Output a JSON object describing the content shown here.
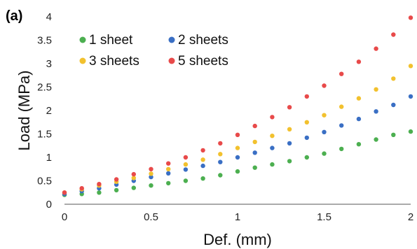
{
  "panel_label": "(a)",
  "chart_data": {
    "type": "scatter",
    "title": "",
    "xlabel": "Def.  (mm)",
    "ylabel": "Load  (MPa)",
    "xlim": [
      0,
      2
    ],
    "ylim": [
      0,
      4
    ],
    "xticks": [
      0,
      0.5,
      1,
      1.5,
      2
    ],
    "xtick_labels": [
      "0",
      "0.5",
      "1",
      "1.5",
      "2"
    ],
    "yticks": [
      0,
      0.5,
      1,
      1.5,
      2,
      2.5,
      3,
      3.5,
      4
    ],
    "ytick_labels": [
      "0",
      "0.5",
      "1",
      "1.5",
      "2",
      "2.5",
      "3",
      "3.5",
      "4"
    ],
    "grid": false,
    "legend_placement": "top-left",
    "series": [
      {
        "name": "1 sheet",
        "color": "#4caf50",
        "x": [
          0,
          0.1,
          0.2,
          0.3,
          0.4,
          0.5,
          0.6,
          0.7,
          0.8,
          0.9,
          1.0,
          1.1,
          1.2,
          1.3,
          1.4,
          1.5,
          1.6,
          1.7,
          1.8,
          1.9,
          2.0
        ],
        "y": [
          0.2,
          0.22,
          0.25,
          0.3,
          0.35,
          0.4,
          0.45,
          0.5,
          0.55,
          0.62,
          0.7,
          0.78,
          0.85,
          0.92,
          1.0,
          1.08,
          1.18,
          1.28,
          1.38,
          1.48,
          1.55
        ]
      },
      {
        "name": "2 sheets",
        "color": "#3a6fc4",
        "x": [
          0,
          0.1,
          0.2,
          0.3,
          0.4,
          0.5,
          0.6,
          0.7,
          0.8,
          0.9,
          1.0,
          1.1,
          1.2,
          1.3,
          1.4,
          1.5,
          1.6,
          1.7,
          1.8,
          1.9,
          2.0
        ],
        "y": [
          0.22,
          0.28,
          0.34,
          0.42,
          0.5,
          0.58,
          0.66,
          0.74,
          0.82,
          0.9,
          1.0,
          1.1,
          1.2,
          1.3,
          1.42,
          1.54,
          1.68,
          1.82,
          1.98,
          2.12,
          2.3
        ]
      },
      {
        "name": "3 sheets",
        "color": "#f2c12e",
        "x": [
          0,
          0.1,
          0.2,
          0.3,
          0.4,
          0.5,
          0.6,
          0.7,
          0.8,
          0.9,
          1.0,
          1.1,
          1.2,
          1.3,
          1.4,
          1.5,
          1.6,
          1.7,
          1.8,
          1.9,
          2.0
        ],
        "y": [
          0.25,
          0.32,
          0.4,
          0.48,
          0.56,
          0.65,
          0.75,
          0.85,
          0.95,
          1.07,
          1.2,
          1.33,
          1.46,
          1.6,
          1.75,
          1.9,
          2.08,
          2.26,
          2.45,
          2.68,
          2.95
        ]
      },
      {
        "name": "5 sheets",
        "color": "#e84a4a",
        "x": [
          0,
          0.1,
          0.2,
          0.3,
          0.4,
          0.5,
          0.6,
          0.7,
          0.8,
          0.9,
          1.0,
          1.1,
          1.2,
          1.3,
          1.4,
          1.5,
          1.6,
          1.7,
          1.8,
          1.9,
          2.0
        ],
        "y": [
          0.25,
          0.34,
          0.43,
          0.53,
          0.64,
          0.75,
          0.87,
          1.0,
          1.15,
          1.3,
          1.48,
          1.67,
          1.86,
          2.07,
          2.3,
          2.53,
          2.78,
          3.04,
          3.32,
          3.62,
          3.98
        ]
      }
    ]
  }
}
